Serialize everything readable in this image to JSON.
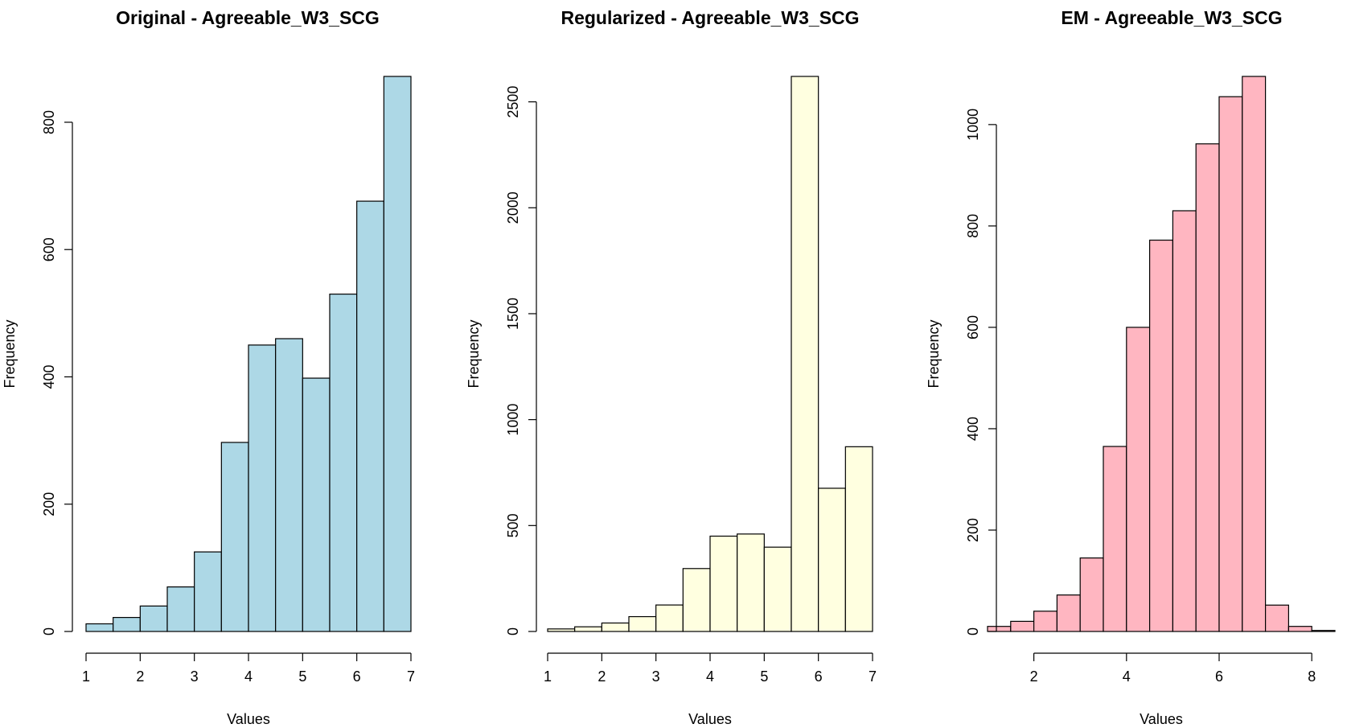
{
  "chart_data": [
    {
      "type": "bar",
      "title": "Original - Agreeable_W3_SCG",
      "xlabel": "Values",
      "ylabel": "Frequency",
      "color": "#ADD8E6",
      "bin_edges": [
        1,
        1.5,
        2,
        2.5,
        3,
        3.5,
        4,
        4.5,
        5,
        5.5,
        6,
        6.5,
        7
      ],
      "values": [
        12,
        22,
        40,
        70,
        125,
        297,
        450,
        460,
        398,
        530,
        676,
        872
      ],
      "xlim": [
        1,
        7
      ],
      "ylim": [
        0,
        872
      ],
      "xticks": [
        1,
        2,
        3,
        4,
        5,
        6,
        7
      ],
      "yticks": [
        0,
        200,
        400,
        600,
        800
      ],
      "grid": false
    },
    {
      "type": "bar",
      "title": "Regularized - Agreeable_W3_SCG",
      "xlabel": "Values",
      "ylabel": "Frequency",
      "color": "#FFFFE0",
      "bin_edges": [
        1,
        1.5,
        2,
        2.5,
        3,
        3.5,
        4,
        4.5,
        5,
        5.5,
        6,
        6.5,
        7
      ],
      "values": [
        12,
        22,
        40,
        70,
        125,
        297,
        450,
        460,
        398,
        2620,
        676,
        872
      ],
      "xlim": [
        1,
        7
      ],
      "ylim": [
        0,
        2620
      ],
      "xticks": [
        1,
        2,
        3,
        4,
        5,
        6,
        7
      ],
      "yticks": [
        0,
        500,
        1000,
        1500,
        2000,
        2500
      ],
      "grid": false
    },
    {
      "type": "bar",
      "title": "EM - Agreeable_W3_SCG",
      "xlabel": "Values",
      "ylabel": "Frequency",
      "color": "#FFB6C1",
      "bin_edges": [
        1,
        1.5,
        2,
        2.5,
        3,
        3.5,
        4,
        4.5,
        5,
        5.5,
        6,
        6.5,
        7,
        7.5,
        8,
        8.5
      ],
      "values": [
        10,
        20,
        40,
        72,
        145,
        365,
        600,
        772,
        830,
        962,
        1055,
        1095,
        52,
        10,
        2
      ],
      "xlim": [
        1,
        8.5
      ],
      "ylim": [
        0,
        1095
      ],
      "xticks": [
        2,
        4,
        6,
        8
      ],
      "yticks": [
        0,
        200,
        400,
        600,
        800,
        1000
      ],
      "grid": false
    }
  ]
}
